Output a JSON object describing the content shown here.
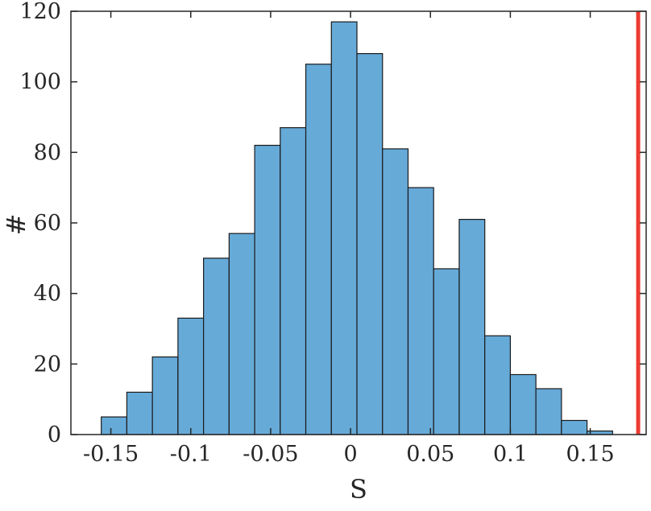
{
  "figure": {
    "background": "#ffffff"
  },
  "chart_data": {
    "type": "bar",
    "subtype": "histogram",
    "title": "",
    "xlabel": "S",
    "ylabel": "#",
    "xlim": [
      -0.175,
      0.185
    ],
    "ylim": [
      0,
      120
    ],
    "xticks": [
      -0.15,
      -0.1,
      -0.05,
      0,
      0.05,
      0.1,
      0.15
    ],
    "xtick_labels": [
      "-0.15",
      "-0.1",
      "-0.05",
      "0",
      "0.05",
      "0.1",
      "0.15"
    ],
    "yticks": [
      0,
      20,
      40,
      60,
      80,
      100,
      120
    ],
    "ytick_labels": [
      "0",
      "20",
      "40",
      "60",
      "80",
      "100",
      "120"
    ],
    "bin_start": -0.156,
    "bin_width": 0.016,
    "counts": [
      5,
      12,
      22,
      33,
      50,
      57,
      82,
      87,
      105,
      117,
      108,
      81,
      70,
      47,
      61,
      28,
      17,
      13,
      4,
      1
    ],
    "bar_fill": "#66aad8",
    "bar_edge": "#1a1a1a",
    "vline": {
      "x": 0.18,
      "color": "#ed3b32",
      "width": 5
    },
    "axis_color": "#262626",
    "grid": false,
    "legend": null
  }
}
